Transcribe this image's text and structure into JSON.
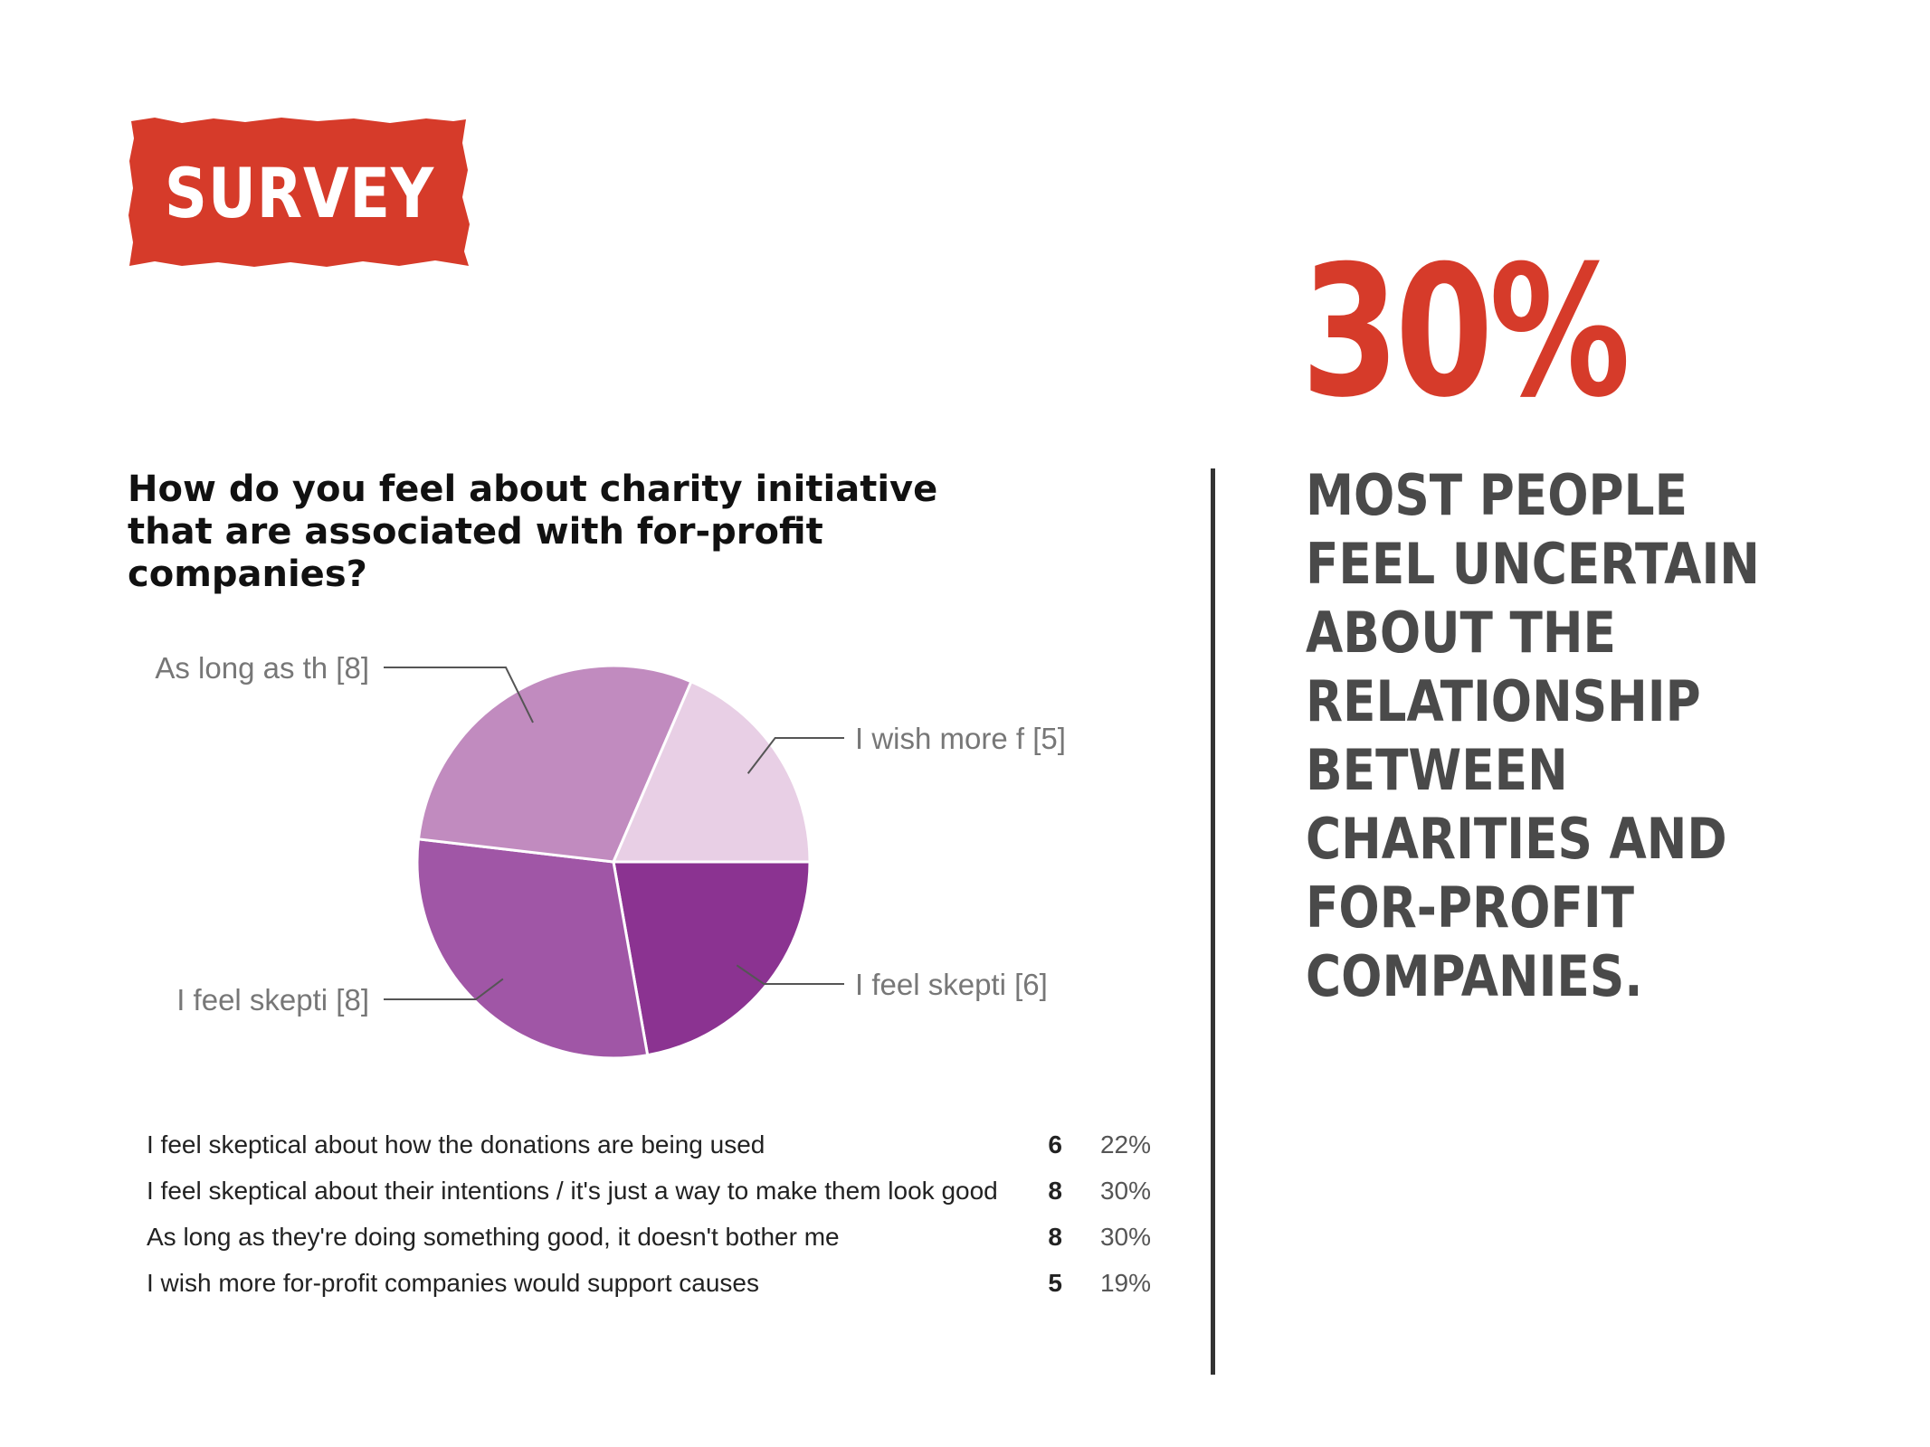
{
  "badge": {
    "label": "SURVEY",
    "color": "#d63b2a"
  },
  "question": "How do you feel about charity initiative that are associated with for-profit companies?",
  "chart_data": {
    "type": "pie",
    "slices": [
      {
        "label": "I feel skepti [6]",
        "full_label": "I feel skeptical about how the donations are being used",
        "value": 6,
        "percent": "22%",
        "color": "#8b3391"
      },
      {
        "label": "I feel skepti [8]",
        "full_label": "I feel skeptical about their intentions / it's just a way to make them look good",
        "value": 8,
        "percent": "30%",
        "color": "#a056a6"
      },
      {
        "label": "As long as th [8]",
        "full_label": "As long as they're doing something good, it doesn't bother me",
        "value": 8,
        "percent": "30%",
        "color": "#c18bbf"
      },
      {
        "label": "I wish more f [5]",
        "full_label": "I wish more for-profit companies would support causes",
        "value": 5,
        "percent": "19%",
        "color": "#e8cfe5"
      }
    ]
  },
  "highlight": {
    "stat": "30%",
    "stat_color": "#d63b2a",
    "text": "MOST PEOPLE FEEL UNCERTAIN ABOUT THE RELATIONSHIP BETWEEN CHARITIES AND FOR-PROFIT COMPANIES."
  }
}
